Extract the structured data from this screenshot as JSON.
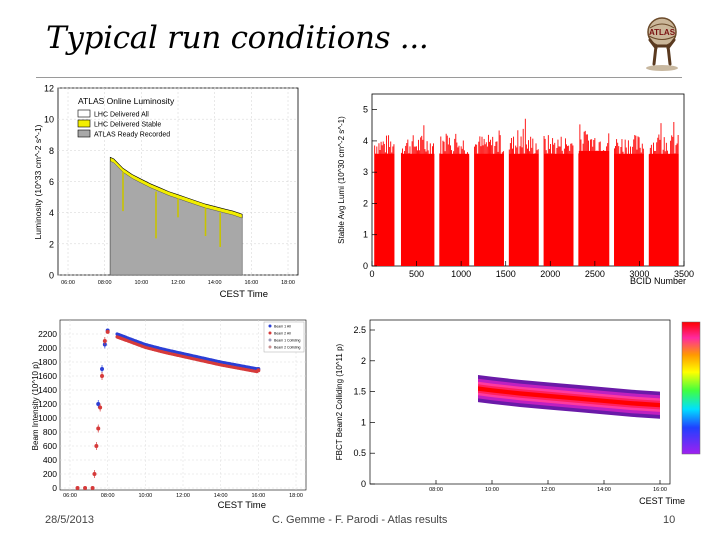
{
  "slide": {
    "title": "Typical run conditions ...",
    "date": "28/5/2013",
    "authors": "C. Gemme - F. Parodi - Atlas results",
    "page_number": "10",
    "logo_text": "ATLAS"
  },
  "chart_data": [
    {
      "type": "area",
      "title": "ATLAS Online Luminosity",
      "xlabel": "CEST Time",
      "ylabel": "Luminosity (10^33 cm^-2 s^-1)",
      "ylim": [
        0,
        12
      ],
      "x_ticks": [
        "06:00",
        "08:00",
        "10:00",
        "12:00",
        "14:00",
        "16:00",
        "18:00"
      ],
      "y_ticks": [
        "0",
        "2",
        "4",
        "6",
        "8",
        "10",
        "12"
      ],
      "legend": [
        "LHC Delivered All",
        "LHC Delivered Stable",
        "ATLAS Ready Recorded"
      ],
      "legend_placement": "top-left",
      "colors": {
        "delivered": "#ffffff",
        "stable": "#f2ee00",
        "recorded": "#a8a8a8"
      },
      "series": [
        {
          "name": "ATLAS Ready Recorded",
          "x": [
            8.3,
            8.5,
            9,
            9.5,
            10,
            10.5,
            11,
            11.5,
            12,
            12.5,
            13,
            13.5,
            14,
            14.5,
            15,
            15.5
          ],
          "values": [
            7.3,
            7.2,
            6.6,
            6.2,
            5.9,
            5.6,
            5.35,
            5.1,
            4.9,
            4.7,
            4.5,
            4.3,
            4.15,
            4.0,
            3.85,
            3.65
          ]
        }
      ]
    },
    {
      "type": "bar",
      "xlabel": "BCID Number",
      "ylabel": "Stable Avg Lumi (10^30 cm^-2 s^-1)",
      "xlim": [
        0,
        3500
      ],
      "ylim": [
        0,
        5.5
      ],
      "x_ticks": [
        "0",
        "500",
        "1000",
        "1500",
        "2000",
        "2500",
        "3000",
        "3500"
      ],
      "y_ticks": [
        "0",
        "1",
        "2",
        "3",
        "4",
        "5"
      ],
      "color": "#ff0000",
      "bunch_trains": [
        {
          "start": 30,
          "end": 250,
          "level": 3.9
        },
        {
          "start": 330,
          "end": 700,
          "level": 3.9
        },
        {
          "start": 760,
          "end": 1090,
          "level": 3.9
        },
        {
          "start": 1150,
          "end": 1480,
          "level": 3.9
        },
        {
          "start": 1540,
          "end": 1870,
          "level": 3.9
        },
        {
          "start": 1930,
          "end": 2260,
          "level": 3.9
        },
        {
          "start": 2320,
          "end": 2660,
          "level": 4.0
        },
        {
          "start": 2720,
          "end": 3050,
          "level": 3.9
        },
        {
          "start": 3110,
          "end": 3440,
          "level": 3.9
        }
      ]
    },
    {
      "type": "scatter",
      "xlabel": "CEST Time",
      "ylabel": "Beam Intensity (10^10 p)",
      "ylim": [
        0,
        2400
      ],
      "x_ticks": [
        "06:00",
        "08:00",
        "10:00",
        "12:00",
        "14:00",
        "16:00",
        "18:00"
      ],
      "y_ticks": [
        "0",
        "200",
        "400",
        "600",
        "800",
        "1000",
        "1200",
        "1400",
        "1600",
        "1800",
        "2000",
        "2200"
      ],
      "legend": [
        "Beam 1 All",
        "Beam 2 All",
        "Beam 1 Colliding",
        "Beam 2 Colliding"
      ],
      "legend_placement": "top-right",
      "colors": {
        "beam1": "#2a3fd6",
        "beam2": "#d63a3a",
        "beam1_colliding": "#9a9ab8",
        "beam2_colliding": "#c89090"
      },
      "series": [
        {
          "name": "Beam 1 All",
          "x": [
            7.5,
            7.7,
            7.85,
            8.0,
            8.5,
            9,
            10,
            11,
            12,
            13,
            14,
            15,
            16
          ],
          "values": [
            1200,
            1700,
            2050,
            2250,
            2200,
            2150,
            2050,
            1980,
            1920,
            1860,
            1800,
            1750,
            1700
          ]
        },
        {
          "name": "Beam 2 All",
          "x": [
            6.4,
            6.8,
            7.2,
            7.3,
            7.4,
            7.5,
            7.6,
            7.7,
            7.85,
            8.0,
            8.5,
            9,
            10,
            11,
            12,
            13,
            14,
            15,
            16
          ],
          "values": [
            0,
            0,
            0,
            200,
            600,
            850,
            1150,
            1600,
            2100,
            2230,
            2180,
            2130,
            2030,
            1960,
            1900,
            1840,
            1780,
            1730,
            1680
          ]
        }
      ]
    },
    {
      "type": "heatmap",
      "xlabel": "CEST Time",
      "ylabel": "FBCT Beam2 Colliding (10^11 p)",
      "ylim": [
        0,
        2.5
      ],
      "x_ticks": [
        "08:00",
        "10:00",
        "12:00",
        "14:00",
        "16:00"
      ],
      "y_ticks": [
        "0",
        "0.5",
        "1",
        "1.5",
        "2",
        "2.5"
      ],
      "series": [
        {
          "name": "mean",
          "x": [
            9.5,
            10,
            11,
            12,
            13,
            14,
            15,
            16
          ],
          "values": [
            1.55,
            1.52,
            1.47,
            1.43,
            1.39,
            1.35,
            1.31,
            1.28
          ]
        }
      ]
    }
  ]
}
